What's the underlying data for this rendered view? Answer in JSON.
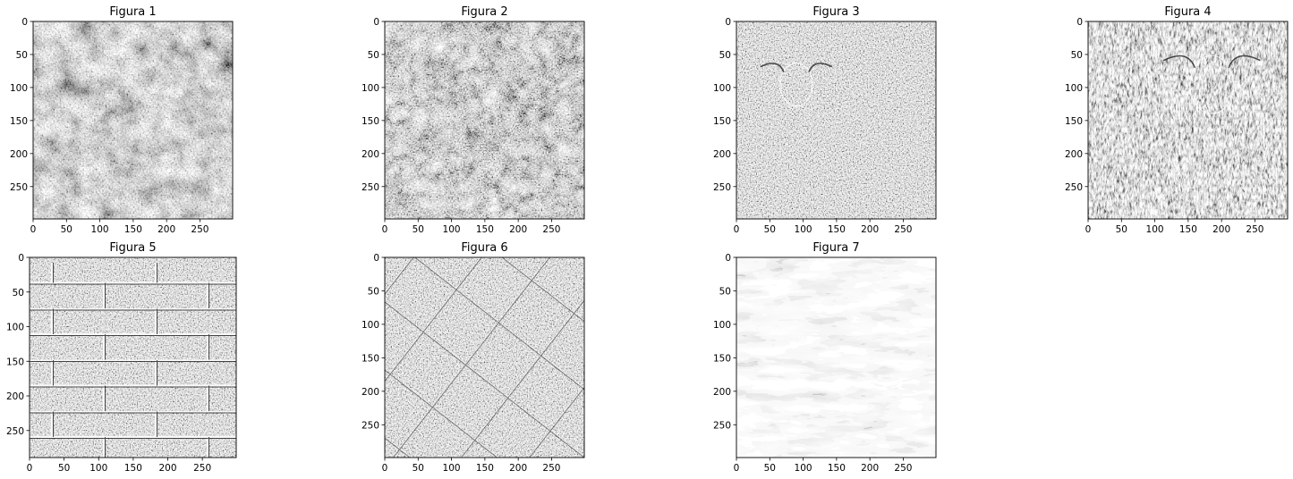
{
  "chart_data": [
    {
      "type": "heatmap",
      "title": "Figura 1",
      "colormap": "gray",
      "texture": "cobblestone",
      "xlim": [
        0,
        299
      ],
      "ylim": [
        299,
        0
      ],
      "xticks": [
        0,
        50,
        100,
        150,
        200,
        250
      ],
      "yticks": [
        0,
        50,
        100,
        150,
        200,
        250
      ]
    },
    {
      "type": "heatmap",
      "title": "Figura 2",
      "colormap": "gray",
      "texture": "pebbles",
      "xlim": [
        0,
        299
      ],
      "ylim": [
        299,
        0
      ],
      "xticks": [
        0,
        50,
        100,
        150,
        200,
        250
      ],
      "yticks": [
        0,
        50,
        100,
        150,
        200,
        250
      ]
    },
    {
      "type": "heatmap",
      "title": "Figura 3",
      "colormap": "gray",
      "texture": "sheep",
      "xlim": [
        0,
        299
      ],
      "ylim": [
        299,
        0
      ],
      "xticks": [
        0,
        50,
        100,
        150,
        200,
        250
      ],
      "yticks": [
        0,
        50,
        100,
        150,
        200,
        250
      ]
    },
    {
      "type": "heatmap",
      "title": "Figura 4",
      "colormap": "gray",
      "texture": "sheep-closeup",
      "xlim": [
        0,
        299
      ],
      "ylim": [
        299,
        0
      ],
      "xticks": [
        0,
        50,
        100,
        150,
        200,
        250
      ],
      "yticks": [
        0,
        50,
        100,
        150,
        200,
        250
      ]
    },
    {
      "type": "heatmap",
      "title": "Figura 5",
      "colormap": "gray",
      "texture": "brick-wall",
      "xlim": [
        0,
        299
      ],
      "ylim": [
        289,
        0
      ],
      "xticks": [
        0,
        50,
        100,
        150,
        200,
        250
      ],
      "yticks": [
        0,
        50,
        100,
        150,
        200,
        250
      ]
    },
    {
      "type": "heatmap",
      "title": "Figura 6",
      "colormap": "gray",
      "texture": "diagonal-tiles",
      "xlim": [
        0,
        299
      ],
      "ylim": [
        299,
        0
      ],
      "xticks": [
        0,
        50,
        100,
        150,
        200,
        250
      ],
      "yticks": [
        0,
        50,
        100,
        150,
        200,
        250
      ]
    },
    {
      "type": "heatmap",
      "title": "Figura 7",
      "colormap": "gray",
      "texture": "blocky-landscape",
      "xlim": [
        0,
        299
      ],
      "ylim": [
        299,
        0
      ],
      "xticks": [
        0,
        50,
        100,
        150,
        200,
        250
      ],
      "yticks": [
        0,
        50,
        100,
        150,
        200,
        250
      ]
    }
  ]
}
